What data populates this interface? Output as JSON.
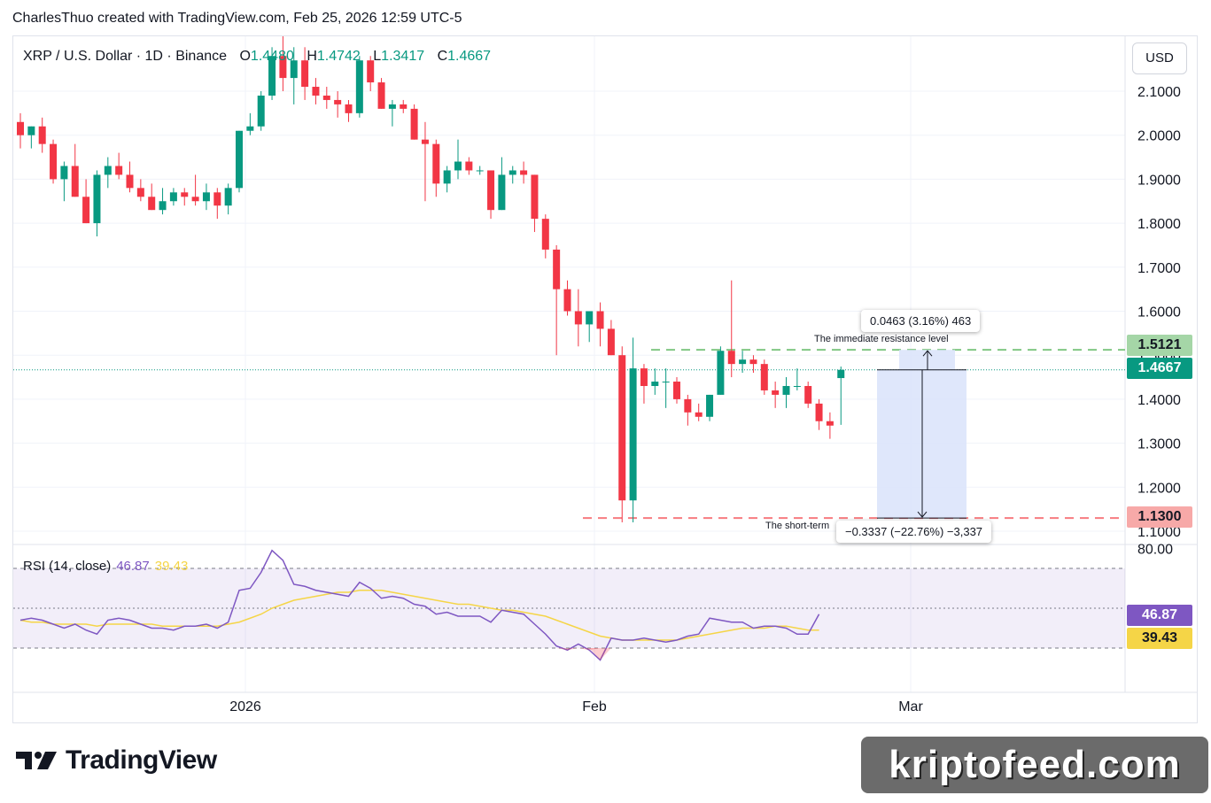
{
  "caption": "CharlesThuo created with TradingView.com, Feb 25, 2026 12:59 UTC-5",
  "legend": {
    "symbol": "XRP / U.S. Dollar · 1D · Binance",
    "o_label": "O",
    "o_value": "1.4480",
    "h_label": "H",
    "h_value": "1.4742",
    "l_label": "L",
    "l_value": "1.3417",
    "c_label": "C",
    "c_value": "1.4667"
  },
  "currency_button": "USD",
  "price_badges": {
    "resistance": "1.5121",
    "last": "1.4667",
    "support": "1.1300"
  },
  "rsi_legend": {
    "label": "RSI (14, close)",
    "rsi_value": "46.87",
    "ma_value": "39.43"
  },
  "rsi_badges": {
    "rsi": "46.87",
    "ma": "39.43"
  },
  "measure_up": "0.0463 (3.16%) 463",
  "measure_down": "−0.3337 (−22.76%) −3,337",
  "annotations": {
    "resistance": "The immediate resistance level",
    "support": "The short-term"
  },
  "branding": {
    "tradingview": "TradingView",
    "watermark": "kriptofeed.com"
  },
  "colors": {
    "up": "#089981",
    "down": "#f23645",
    "rsi": "#7e57c2",
    "rsi_ma": "#f5d547",
    "resistance": "#81c784",
    "support": "#f77c80",
    "measure_fill": "#dbe4fb"
  },
  "chart_data": [
    {
      "type": "candlestick",
      "title": "XRP / U.S. Dollar · 1D · Binance",
      "price_axis_ticks": [
        "2.1000",
        "2.0000",
        "1.9000",
        "1.8000",
        "1.7000",
        "1.6000",
        "1.5000",
        "1.4000",
        "1.3000",
        "1.2000",
        "1.1000"
      ],
      "time_axis_labels": [
        "2026",
        "Feb",
        "Mar"
      ],
      "ylim": [
        1.09,
        2.15
      ],
      "horizontal_levels": [
        {
          "value": 1.5121,
          "style": "dashed"
        },
        {
          "value": 1.13,
          "style": "dashed"
        }
      ],
      "candles": [
        {
          "o": 2.03,
          "h": 2.05,
          "l": 1.97,
          "c": 2.0
        },
        {
          "o": 2.0,
          "h": 2.02,
          "l": 1.97,
          "c": 2.02
        },
        {
          "o": 2.02,
          "h": 2.04,
          "l": 1.96,
          "c": 1.98
        },
        {
          "o": 1.98,
          "h": 1.99,
          "l": 1.89,
          "c": 1.9
        },
        {
          "o": 1.9,
          "h": 1.94,
          "l": 1.85,
          "c": 1.93
        },
        {
          "o": 1.93,
          "h": 1.98,
          "l": 1.86,
          "c": 1.86
        },
        {
          "o": 1.86,
          "h": 1.9,
          "l": 1.8,
          "c": 1.8
        },
        {
          "o": 1.8,
          "h": 1.92,
          "l": 1.77,
          "c": 1.91
        },
        {
          "o": 1.91,
          "h": 1.95,
          "l": 1.88,
          "c": 1.93
        },
        {
          "o": 1.93,
          "h": 1.96,
          "l": 1.9,
          "c": 1.91
        },
        {
          "o": 1.91,
          "h": 1.94,
          "l": 1.87,
          "c": 1.88
        },
        {
          "o": 1.88,
          "h": 1.9,
          "l": 1.85,
          "c": 1.86
        },
        {
          "o": 1.86,
          "h": 1.89,
          "l": 1.83,
          "c": 1.83
        },
        {
          "o": 1.83,
          "h": 1.88,
          "l": 1.82,
          "c": 1.85
        },
        {
          "o": 1.85,
          "h": 1.88,
          "l": 1.84,
          "c": 1.87
        },
        {
          "o": 1.87,
          "h": 1.88,
          "l": 1.84,
          "c": 1.86
        },
        {
          "o": 1.86,
          "h": 1.91,
          "l": 1.84,
          "c": 1.85
        },
        {
          "o": 1.85,
          "h": 1.89,
          "l": 1.83,
          "c": 1.87
        },
        {
          "o": 1.87,
          "h": 1.88,
          "l": 1.81,
          "c": 1.84
        },
        {
          "o": 1.84,
          "h": 1.89,
          "l": 1.82,
          "c": 1.88
        },
        {
          "o": 1.88,
          "h": 2.01,
          "l": 1.87,
          "c": 2.01
        },
        {
          "o": 2.01,
          "h": 2.05,
          "l": 2.0,
          "c": 2.02
        },
        {
          "o": 2.02,
          "h": 2.1,
          "l": 2.01,
          "c": 2.09
        },
        {
          "o": 2.09,
          "h": 2.2,
          "l": 2.08,
          "c": 2.18
        },
        {
          "o": 2.18,
          "h": 2.25,
          "l": 2.1,
          "c": 2.13
        },
        {
          "o": 2.13,
          "h": 2.2,
          "l": 2.07,
          "c": 2.17
        },
        {
          "o": 2.17,
          "h": 2.2,
          "l": 2.08,
          "c": 2.11
        },
        {
          "o": 2.11,
          "h": 2.13,
          "l": 2.07,
          "c": 2.09
        },
        {
          "o": 2.09,
          "h": 2.11,
          "l": 2.06,
          "c": 2.08
        },
        {
          "o": 2.08,
          "h": 2.1,
          "l": 2.04,
          "c": 2.07
        },
        {
          "o": 2.07,
          "h": 2.08,
          "l": 2.03,
          "c": 2.05
        },
        {
          "o": 2.05,
          "h": 2.18,
          "l": 2.04,
          "c": 2.17
        },
        {
          "o": 2.17,
          "h": 2.18,
          "l": 2.1,
          "c": 2.12
        },
        {
          "o": 2.12,
          "h": 2.13,
          "l": 2.06,
          "c": 2.06
        },
        {
          "o": 2.06,
          "h": 2.08,
          "l": 2.02,
          "c": 2.07
        },
        {
          "o": 2.07,
          "h": 2.08,
          "l": 2.05,
          "c": 2.06
        },
        {
          "o": 2.06,
          "h": 2.07,
          "l": 1.99,
          "c": 1.99
        },
        {
          "o": 1.99,
          "h": 2.03,
          "l": 1.85,
          "c": 1.98
        },
        {
          "o": 1.98,
          "h": 1.99,
          "l": 1.86,
          "c": 1.89
        },
        {
          "o": 1.89,
          "h": 1.93,
          "l": 1.87,
          "c": 1.92
        },
        {
          "o": 1.92,
          "h": 1.99,
          "l": 1.9,
          "c": 1.94
        },
        {
          "o": 1.94,
          "h": 1.95,
          "l": 1.91,
          "c": 1.92
        },
        {
          "o": 1.92,
          "h": 1.93,
          "l": 1.91,
          "c": 1.92
        },
        {
          "o": 1.92,
          "h": 1.92,
          "l": 1.81,
          "c": 1.83
        },
        {
          "o": 1.83,
          "h": 1.95,
          "l": 1.83,
          "c": 1.91
        },
        {
          "o": 1.91,
          "h": 1.93,
          "l": 1.89,
          "c": 1.92
        },
        {
          "o": 1.92,
          "h": 1.94,
          "l": 1.89,
          "c": 1.91
        },
        {
          "o": 1.91,
          "h": 1.91,
          "l": 1.78,
          "c": 1.81
        },
        {
          "o": 1.81,
          "h": 1.82,
          "l": 1.72,
          "c": 1.74
        },
        {
          "o": 1.74,
          "h": 1.75,
          "l": 1.5,
          "c": 1.65
        },
        {
          "o": 1.65,
          "h": 1.67,
          "l": 1.59,
          "c": 1.6
        },
        {
          "o": 1.6,
          "h": 1.65,
          "l": 1.52,
          "c": 1.57
        },
        {
          "o": 1.57,
          "h": 1.6,
          "l": 1.53,
          "c": 1.6
        },
        {
          "o": 1.6,
          "h": 1.62,
          "l": 1.52,
          "c": 1.56
        },
        {
          "o": 1.56,
          "h": 1.58,
          "l": 1.5,
          "c": 1.5
        },
        {
          "o": 1.5,
          "h": 1.52,
          "l": 1.12,
          "c": 1.17
        },
        {
          "o": 1.17,
          "h": 1.54,
          "l": 1.12,
          "c": 1.47
        },
        {
          "o": 1.47,
          "h": 1.48,
          "l": 1.39,
          "c": 1.43
        },
        {
          "o": 1.43,
          "h": 1.47,
          "l": 1.41,
          "c": 1.44
        },
        {
          "o": 1.44,
          "h": 1.47,
          "l": 1.38,
          "c": 1.44
        },
        {
          "o": 1.44,
          "h": 1.45,
          "l": 1.39,
          "c": 1.4
        },
        {
          "o": 1.4,
          "h": 1.41,
          "l": 1.34,
          "c": 1.37
        },
        {
          "o": 1.37,
          "h": 1.39,
          "l": 1.35,
          "c": 1.36
        },
        {
          "o": 1.36,
          "h": 1.41,
          "l": 1.35,
          "c": 1.41
        },
        {
          "o": 1.41,
          "h": 1.52,
          "l": 1.41,
          "c": 1.51
        },
        {
          "o": 1.51,
          "h": 1.67,
          "l": 1.45,
          "c": 1.48
        },
        {
          "o": 1.48,
          "h": 1.51,
          "l": 1.46,
          "c": 1.49
        },
        {
          "o": 1.49,
          "h": 1.5,
          "l": 1.46,
          "c": 1.48
        },
        {
          "o": 1.48,
          "h": 1.49,
          "l": 1.41,
          "c": 1.42
        },
        {
          "o": 1.42,
          "h": 1.44,
          "l": 1.38,
          "c": 1.41
        },
        {
          "o": 1.41,
          "h": 1.45,
          "l": 1.38,
          "c": 1.43
        },
        {
          "o": 1.43,
          "h": 1.47,
          "l": 1.42,
          "c": 1.43
        },
        {
          "o": 1.43,
          "h": 1.44,
          "l": 1.38,
          "c": 1.39
        },
        {
          "o": 1.39,
          "h": 1.4,
          "l": 1.33,
          "c": 1.35
        },
        {
          "o": 1.35,
          "h": 1.37,
          "l": 1.31,
          "c": 1.34
        },
        {
          "o": 1.448,
          "h": 1.4742,
          "l": 1.3417,
          "c": 1.4667
        }
      ]
    },
    {
      "type": "line",
      "title": "RSI (14, close)",
      "y_axis_ticks": [
        "80.00"
      ],
      "ylim": [
        20,
        80
      ],
      "bands": [
        70,
        50,
        30
      ],
      "series": [
        {
          "name": "RSI",
          "values": [
            44,
            45,
            44,
            42,
            40,
            42,
            39,
            37,
            44,
            45,
            44,
            42,
            40,
            40,
            39,
            41,
            41,
            42,
            40,
            43,
            59,
            60,
            68,
            79,
            74,
            62,
            61,
            59,
            58,
            57,
            56,
            63,
            60,
            55,
            56,
            55,
            52,
            51,
            47,
            48,
            46,
            46,
            46,
            43,
            49,
            48,
            47,
            42,
            37,
            31,
            29,
            32,
            29,
            24,
            35,
            34,
            34,
            35,
            34,
            33,
            34,
            36,
            37,
            45,
            44,
            43,
            43,
            40,
            41,
            41,
            40,
            37,
            37,
            47
          ]
        },
        {
          "name": "MA",
          "values": [
            44,
            43,
            43,
            42,
            42,
            42,
            42,
            41,
            42,
            42,
            42,
            42,
            42,
            41,
            41,
            41,
            41,
            41,
            41,
            42,
            43,
            45,
            47,
            50,
            52,
            54,
            55,
            56,
            57,
            58,
            58,
            59,
            59,
            59,
            58,
            57,
            56,
            55,
            54,
            53,
            52,
            52,
            51,
            50,
            49,
            49,
            48,
            47,
            46,
            44,
            42,
            40,
            38,
            36,
            35,
            34,
            34,
            34,
            34,
            34,
            34,
            35,
            36,
            37,
            38,
            39,
            40,
            40,
            40,
            41,
            41,
            40,
            39,
            39
          ]
        }
      ]
    }
  ]
}
